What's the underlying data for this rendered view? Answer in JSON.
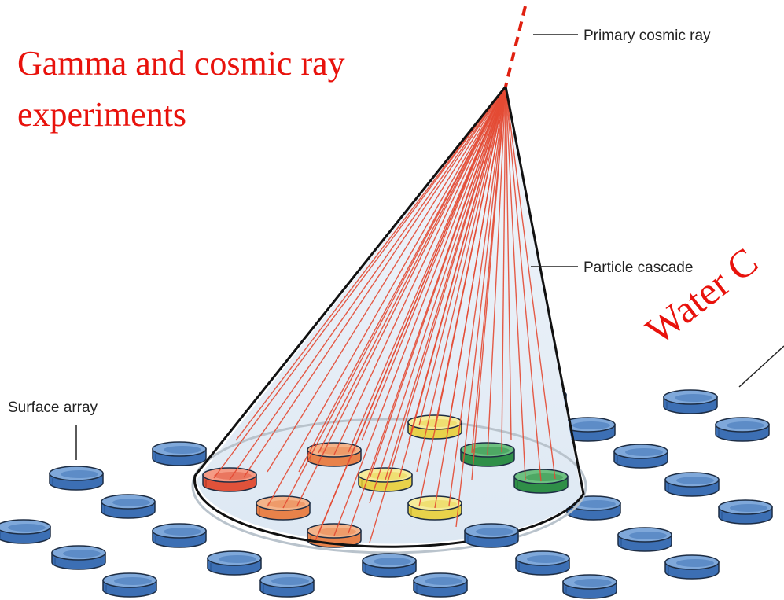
{
  "title_lines": [
    "Gamma and cosmic ray",
    "experiments"
  ],
  "labels": {
    "primary": "Primary cosmic ray",
    "cascade": "Particle cascade",
    "surface": "Surface array",
    "water": "Water C"
  }
}
